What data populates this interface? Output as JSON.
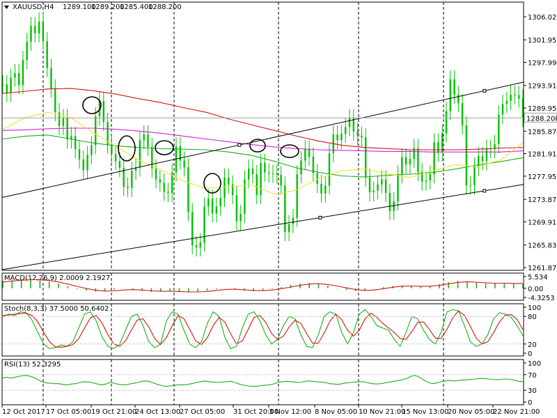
{
  "chart_data": {
    "type": "line",
    "panels": [
      {
        "name": "price",
        "title": "XAUUSD,H4",
        "ohlc_header": [
          "1289.100",
          "1289.200",
          "1285.400",
          "1288.200"
        ],
        "current_price": 1288.2,
        "current_price_label": "1288.200",
        "ylim": [
          1261.87,
          1306.02
        ],
        "y_ticks": [
          "1306.020",
          "1301.950",
          "1297.990",
          "1293.910",
          "1289.950",
          "1285.870",
          "1281.910",
          "1277.950",
          "1273.870",
          "1269.910",
          "1265.830",
          "1261.870"
        ],
        "series": [
          {
            "kind": "candles-close",
            "color": "#00c000",
            "values": [
              1294.1,
              1292.6,
              1295.3,
              1296.1,
              1294.0,
              1298.4,
              1301.6,
              1304.4,
              1303.1,
              1305.2,
              1301.7,
              1297.0,
              1293.4,
              1289.2,
              1286.8,
              1288.2,
              1284.4,
              1285.0,
              1282.7,
              1280.9,
              1279.0,
              1281.7,
              1283.4,
              1288.5,
              1291.2,
              1287.5,
              1283.5,
              1281.8,
              1280.6,
              1279.4,
              1276.1,
              1275.9,
              1278.9,
              1279.5,
              1284.3,
              1285.3,
              1283.1,
              1279.3,
              1277.4,
              1276.8,
              1275.2,
              1275.0,
              1278.6,
              1283.2,
              1280.7,
              1279.5,
              1271.6,
              1265.8,
              1265.4,
              1266.3,
              1272.6,
              1274.0,
              1271.4,
              1272.6,
              1274.1,
              1277.7,
              1276.5,
              1274.6,
              1270.0,
              1271.3,
              1277.4,
              1279.3,
              1278.3,
              1274.6,
              1280.3,
              1278.6,
              1278.4,
              1278.4,
              1278.2,
              1276.3,
              1268.1,
              1269.5,
              1270.6,
              1278.3,
              1280.7,
              1282.7,
              1281.4,
              1278.5,
              1276.6,
              1274.9,
              1276.3,
              1282.0,
              1285.3,
              1284.3,
              1285.4,
              1286.6,
              1288.2,
              1285.8,
              1285.1,
              1284.8,
              1277.7,
              1275.1,
              1275.4,
              1276.5,
              1277.4,
              1275.0,
              1271.8,
              1273.5,
              1278.3,
              1281.3,
              1280.0,
              1281.0,
              1282.9,
              1278.7,
              1277.0,
              1277.2,
              1278.3,
              1283.9,
              1282.1,
              1285.5,
              1289.4,
              1295.0,
              1292.3,
              1290.8,
              1286.9,
              1276.3,
              1276.3,
              1279.6,
              1281.5,
              1280.6,
              1282.8,
              1282.7,
              1283.6,
              1288.8,
              1290.7,
              1291.2,
              1292.3,
              1292.2,
              1291.6,
              1288.2
            ]
          },
          {
            "kind": "ma",
            "color": "#d21414",
            "values": [
              1292.5,
              1292.9,
              1293.3,
              1293.4,
              1293.0,
              1292.4,
              1291.6,
              1290.9,
              1290.0,
              1289.2,
              1288.0,
              1287.0,
              1286.0,
              1285.0,
              1284.1,
              1283.4,
              1283.0,
              1282.8,
              1282.6,
              1282.6,
              1282.6,
              1282.7,
              1282.9,
              1283.0
            ]
          },
          {
            "kind": "ma",
            "color": "#d21ed2",
            "values": [
              1286.0,
              1286.1,
              1286.3,
              1286.4,
              1286.4,
              1286.2,
              1285.9,
              1285.5,
              1285.0,
              1284.5,
              1284.0,
              1283.5,
              1283.1,
              1282.8,
              1282.6,
              1282.5,
              1282.4,
              1282.3,
              1282.3,
              1282.2,
              1282.2,
              1282.2,
              1282.2,
              1282.4
            ]
          },
          {
            "kind": "ma",
            "color": "#18b018",
            "values": [
              1284.5,
              1285.0,
              1285.2,
              1284.5,
              1283.8,
              1283.3,
              1283.0,
              1282.8,
              1282.7,
              1282.6,
              1282.2,
              1281.6,
              1280.6,
              1279.4,
              1278.6,
              1278.0,
              1277.8,
              1278.1,
              1278.3,
              1278.6,
              1279.2,
              1279.9,
              1280.5,
              1281.2
            ]
          },
          {
            "kind": "ma",
            "color": "#f0e030",
            "values": [
              1286.2,
              1288.3,
              1289.2,
              1288.3,
              1285.6,
              1283.2,
              1280.8,
              1279.0,
              1277.1,
              1275.8,
              1276.1,
              1276.4,
              1274.8,
              1275.5,
              1277.6,
              1278.9,
              1279.2,
              1278.4,
              1277.7,
              1278.9,
              1280.0,
              1279.6,
              1280.8,
              1283.8
            ]
          },
          {
            "kind": "trendline",
            "color": "#000000",
            "values": [
              1274.2,
              1294.5
            ]
          },
          {
            "kind": "trendline",
            "color": "#000000",
            "values": [
              1261.5,
              1276.5
            ]
          }
        ],
        "annotations": [
          "circle",
          "circle",
          "circle",
          "circle",
          "circle",
          "circle",
          "circle"
        ]
      },
      {
        "name": "macd",
        "title": "MACD(12,26,9) 2.0009 2.1927",
        "ylim": [
          -4.3253,
          5.534
        ],
        "y_ticks": [
          "5.534",
          "0.00",
          "-4.3253"
        ],
        "series": [
          {
            "name": "MACD",
            "kind": "histogram",
            "color": "#18b018",
            "values": [
              3.5,
              3.8,
              4.2,
              4.4,
              4.1,
              3.2,
              2.2,
              1.0,
              -0.3,
              -1.1,
              -1.6,
              -1.4,
              -0.7,
              -0.1,
              -0.4,
              -1.2,
              -1.7,
              -1.5,
              -1.3,
              -1.6,
              -1.9,
              -1.7,
              -1.1,
              -0.4,
              0.0,
              -0.4,
              -1.2,
              -1.4,
              -1.1,
              -0.3,
              0.7,
              1.6,
              2.2,
              2.5,
              2.1,
              1.2,
              0.2,
              -0.8,
              -1.3,
              -1.1,
              -0.2,
              0.6,
              1.1,
              1.3,
              1.0,
              0.7,
              1.2,
              2.0,
              2.9,
              3.5,
              3.2,
              2.6,
              2.2,
              2.3,
              2.5,
              2.2,
              2.0
            ]
          },
          {
            "name": "Signal",
            "kind": "line",
            "color": "#d21414",
            "values": [
              3.0,
              3.4,
              3.8,
              4.1,
              4.1,
              3.7,
              3.0,
              2.0,
              0.9,
              -0.1,
              -0.9,
              -1.3,
              -1.2,
              -0.8,
              -0.6,
              -0.8,
              -1.2,
              -1.4,
              -1.4,
              -1.5,
              -1.7,
              -1.7,
              -1.5,
              -1.0,
              -0.5,
              -0.4,
              -0.7,
              -1.0,
              -1.1,
              -0.8,
              -0.2,
              0.6,
              1.4,
              2.0,
              2.2,
              1.8,
              1.1,
              0.2,
              -0.6,
              -1.0,
              -0.8,
              -0.2,
              0.5,
              1.0,
              1.1,
              0.9,
              1.0,
              1.4,
              2.1,
              2.8,
              3.1,
              2.9,
              2.6,
              2.4,
              2.4,
              2.3,
              2.2
            ]
          }
        ]
      },
      {
        "name": "stochastic",
        "title": "Stoch(8,3,3) 37.5000 50.6402",
        "ylim": [
          0,
          100
        ],
        "y_ticks": [
          "100",
          "80",
          "20",
          "0"
        ],
        "series": [
          {
            "name": "%K",
            "kind": "line",
            "color": "#18b018",
            "values": [
              80,
              85,
              82,
              90,
              88,
              72,
              45,
              20,
              10,
              12,
              18,
              15,
              25,
              55,
              85,
              90,
              70,
              35,
              15,
              10,
              20,
              50,
              80,
              85,
              60,
              25,
              12,
              20,
              70,
              90,
              85,
              50,
              20,
              12,
              25,
              65,
              90,
              80,
              35,
              10,
              15,
              55,
              85,
              90,
              70,
              40,
              20,
              30,
              60,
              80,
              75,
              40,
              15,
              12,
              40,
              80,
              90,
              85,
              45,
              20,
              45,
              85,
              95,
              80,
              60,
              55,
              50,
              30,
              15,
              45,
              80,
              75,
              50,
              30,
              20,
              45,
              90,
              95,
              92,
              60,
              25,
              15,
              20,
              40,
              75,
              88,
              85,
              78,
              60,
              38
            ]
          },
          {
            "name": "%D",
            "kind": "line",
            "color": "#d21414",
            "values": [
              82,
              83,
              85,
              86,
              87,
              82,
              68,
              45,
              25,
              14,
              13,
              15,
              19,
              32,
              55,
              77,
              82,
              65,
              40,
              20,
              15,
              27,
              50,
              72,
              75,
              57,
              32,
              19,
              34,
              60,
              82,
              75,
              52,
              27,
              19,
              34,
              60,
              78,
              68,
              42,
              20,
              27,
              52,
              78,
              82,
              67,
              43,
              30,
              37,
              57,
              72,
              65,
              43,
              22,
              22,
              44,
              70,
              85,
              73,
              50,
              37,
              50,
              75,
              87,
              78,
              65,
              55,
              45,
              32,
              30,
              47,
              67,
              68,
              52,
              33,
              32,
              52,
              77,
              92,
              82,
              59,
              33,
              20,
              25,
              45,
              68,
              83,
              84,
              74,
              51
            ]
          }
        ]
      },
      {
        "name": "rsi",
        "title": "RSI(13) 52.3295",
        "ylim": [
          0,
          100
        ],
        "y_ticks": [
          "100",
          "70",
          "30",
          "0"
        ],
        "series": [
          {
            "name": "RSI",
            "kind": "line",
            "color": "#18b018",
            "values": [
              62,
              63,
              61,
              64,
              66,
              68,
              67,
              64,
              58,
              52,
              49,
              48,
              47,
              47,
              45,
              44,
              46,
              47,
              50,
              52,
              51,
              49,
              46,
              44,
              46,
              50,
              48,
              45,
              44,
              45,
              47,
              49,
              52,
              54,
              53,
              49,
              45,
              42,
              40,
              41,
              43,
              44,
              44,
              45,
              47,
              50,
              52,
              54,
              52,
              51,
              50,
              51,
              52,
              53,
              50,
              46,
              43,
              41,
              40,
              40,
              42,
              43,
              44,
              46,
              50,
              52,
              53,
              52,
              51,
              50,
              52,
              54,
              53,
              52,
              51,
              50,
              47,
              46,
              45,
              47,
              49,
              50,
              51,
              52,
              52,
              49,
              47,
              46,
              47,
              49,
              51,
              53,
              55,
              57,
              60,
              66,
              68,
              63,
              56,
              50,
              47,
              49,
              52,
              54,
              55,
              54,
              55,
              56,
              57,
              58,
              59,
              60,
              60,
              59,
              58,
              57,
              58,
              59,
              58,
              56,
              53,
              52
            ]
          }
        ]
      }
    ],
    "x_ticks": [
      "12 Oct 2017",
      "17 Oct 05:00",
      "19 Oct 21:00",
      "24 Oct 13:00",
      "27 Oct 05:00",
      "31 Oct 20:00",
      "3 Nov 12:00",
      "8 Nov 05:00",
      "10 Nov 21:00",
      "15 Nov 13:00",
      "20 Nov 05:00",
      "22 Nov 21:00"
    ],
    "grid": "vertical dashed",
    "background": "#ffffff"
  }
}
